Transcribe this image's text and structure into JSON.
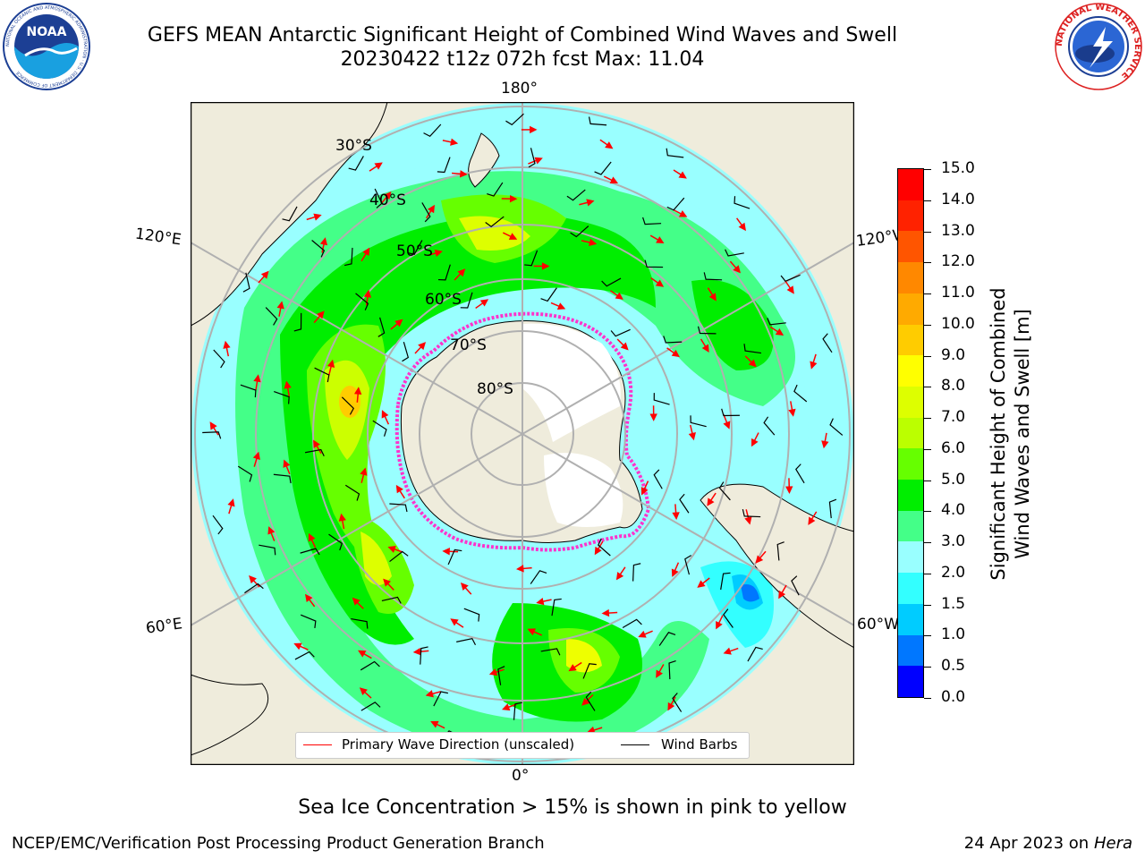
{
  "header": {
    "title_line1": "GEFS MEAN Antarctic Significant Height of Combined Wind Waves and Swell",
    "title_line2": "20230422 t12z 072h fcst   Max: 11.04"
  },
  "logos": {
    "left": {
      "name": "noaa-logo",
      "text": "NOAA",
      "ring_text": "NATIONAL OCEANIC AND ATMOSPHERIC ADMINISTRATION · U.S. DEPARTMENT OF COMMERCE"
    },
    "right": {
      "name": "nws-logo",
      "ring_text": "NATIONAL WEATHER SERVICE"
    }
  },
  "map": {
    "projection": "south-polar-stereographic",
    "longitude_labels": {
      "top": "180°",
      "bottom": "0°",
      "upper_left": "120°E",
      "upper_right": "120°W",
      "lower_left": "60°E",
      "lower_right": "60°W"
    },
    "latitude_labels": [
      "30°S",
      "40°S",
      "50°S",
      "60°S",
      "70°S",
      "80°S"
    ],
    "colors": {
      "land": "#efecdc",
      "antarctica": "#ffffff",
      "graticule": "#b0b0b0",
      "wave_arrow": "#ff0000",
      "wind_barb": "#000000",
      "sea_ice": "#ff33cc"
    }
  },
  "colorbar": {
    "label_line1": "Significant Height of Combined",
    "label_line2": "Wind Waves and Swell [m]",
    "ticks": [
      "0.0",
      "0.5",
      "1.0",
      "1.5",
      "2.0",
      "3.0",
      "4.0",
      "5.0",
      "6.0",
      "7.0",
      "8.0",
      "9.0",
      "10.0",
      "11.0",
      "12.0",
      "13.0",
      "14.0",
      "15.0"
    ],
    "colors": [
      "#0000ff",
      "#0077ff",
      "#00ccff",
      "#33ffff",
      "#99ffff",
      "#44ff88",
      "#00ee00",
      "#66ff00",
      "#bbff00",
      "#ddff00",
      "#ffff00",
      "#ffcc00",
      "#ffaa00",
      "#ff8800",
      "#ff5500",
      "#ff2200",
      "#ff0000"
    ]
  },
  "legend": {
    "wave_label": "Primary Wave Direction (unscaled)",
    "wave_color": "#ff0000",
    "wind_label": "Wind Barbs",
    "wind_color": "#000000"
  },
  "subtitle": "Sea Ice Concentration > 15% is shown in pink to yellow",
  "footer": {
    "left": "NCEP/EMC/Verification Post Processing Product Generation Branch",
    "right_date": "24 Apr 2023 on ",
    "right_machine": "Hera"
  }
}
